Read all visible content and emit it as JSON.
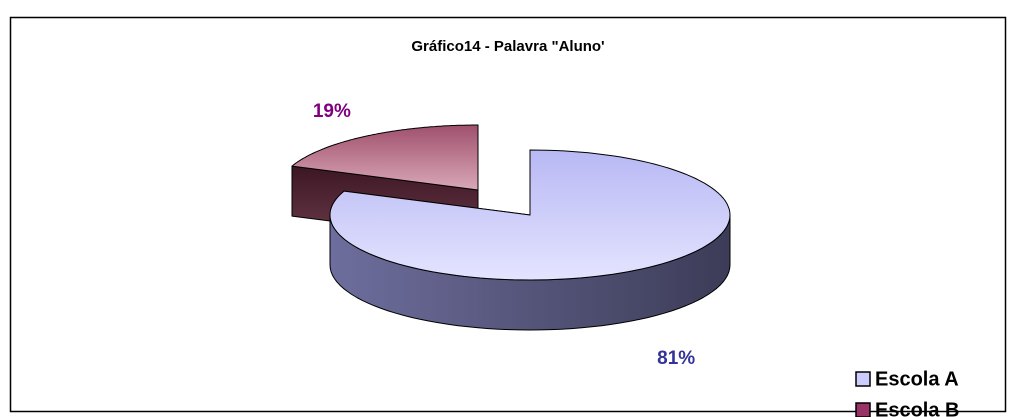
{
  "chart_data": {
    "type": "pie3d",
    "title": "Gráfico14 - Palavra \"Aluno'",
    "categories": [
      "Escola A",
      "Escola B"
    ],
    "values": [
      81,
      19
    ],
    "value_labels": [
      "81%",
      "19%"
    ],
    "colors": [
      "#ccccff",
      "#993366"
    ],
    "label_colors": [
      "#333399",
      "#800080"
    ],
    "legend": "bottom-right"
  }
}
